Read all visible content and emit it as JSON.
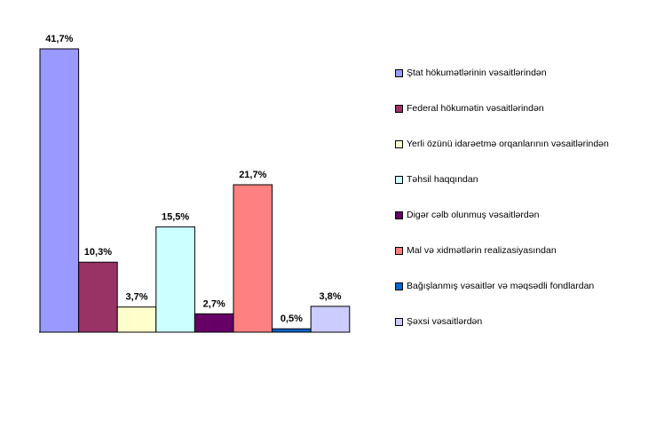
{
  "chart_data": {
    "type": "bar",
    "categories": [
      "Ştat hökumətlərinin vəsaitlərindən",
      "Federal hökumətin vəsaitlərindən",
      "Yerli özünü idarəetmə orqanlarının vəsaitlərindən",
      "Təhsil haqqından",
      "Digər cəlb olunmuş vəsaitlərdən",
      "Mal və xidmətlərin realizasiyasından",
      "Bağışlanmış vəsaitlər və məqsədli fondlardan",
      "Şəxsi vəsaitlərdən"
    ],
    "values": [
      41.7,
      10.3,
      3.7,
      15.5,
      2.7,
      21.7,
      0.5,
      3.8
    ],
    "value_labels": [
      "41,7%",
      "10,3%",
      "3,7%",
      "15,5%",
      "2,7%",
      "21,7%",
      "0,5%",
      "3,8%"
    ],
    "colors": [
      "#9999ff",
      "#993366",
      "#ffffcc",
      "#ccffff",
      "#660066",
      "#ff8080",
      "#0066cc",
      "#ccccff"
    ],
    "ylim": [
      0,
      41.7
    ],
    "legend_position": "right",
    "grid": false
  }
}
